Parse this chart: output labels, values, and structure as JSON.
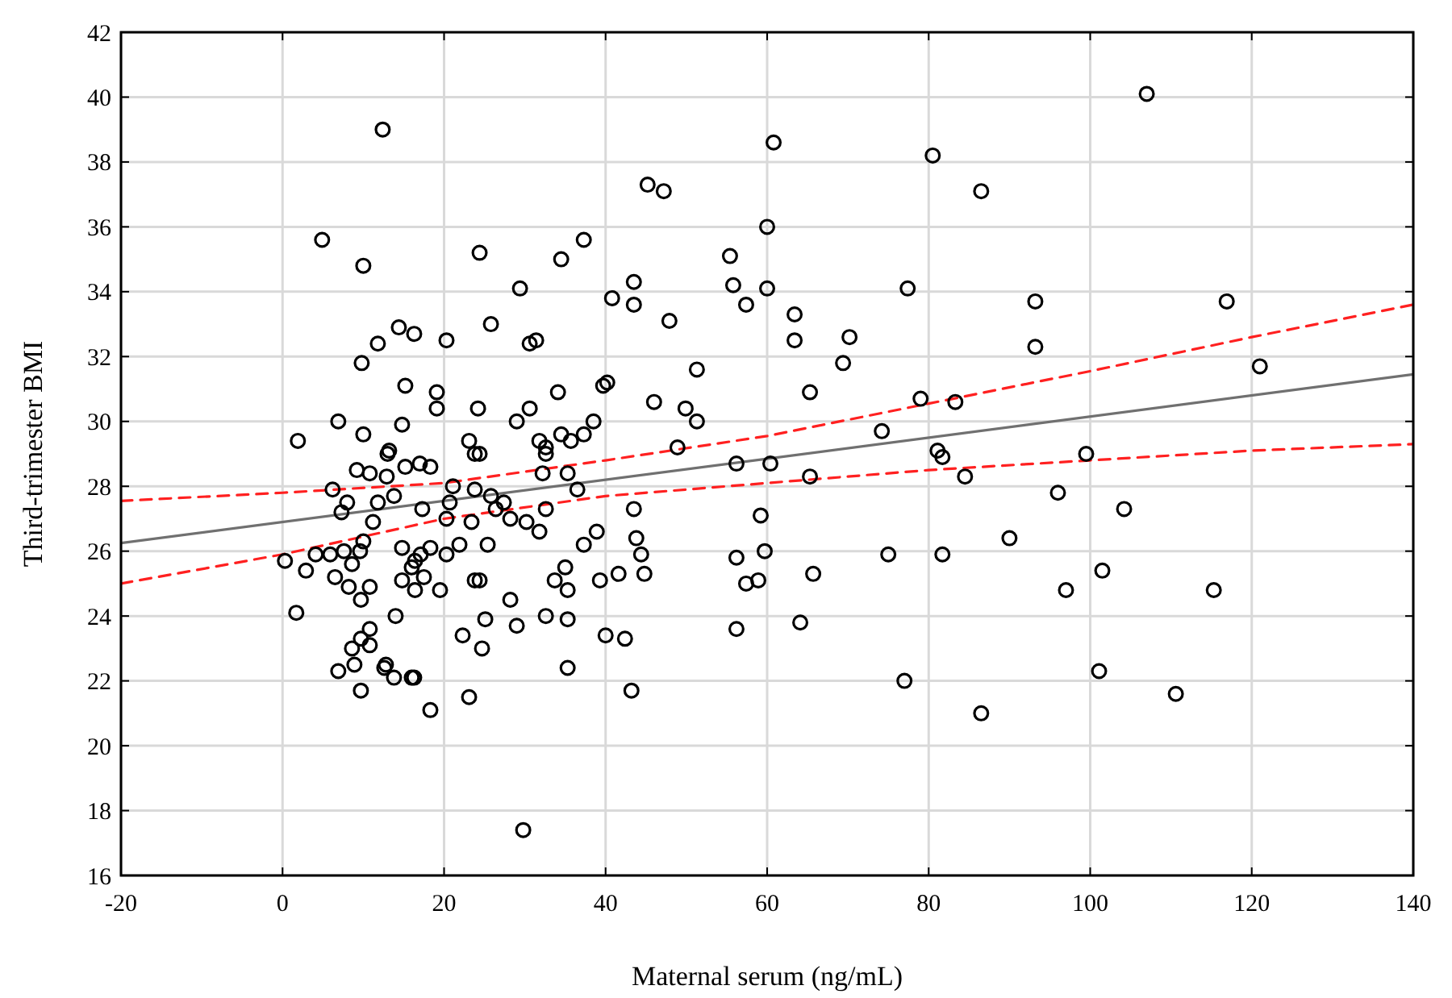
{
  "chart_data": {
    "type": "scatter",
    "xlabel": "Maternal serum (ng/mL)",
    "ylabel": "Third-trimester BMI",
    "xlim": [
      -20,
      140
    ],
    "ylim": [
      16,
      42
    ],
    "xticks": [
      -20,
      0,
      20,
      40,
      60,
      80,
      100,
      120,
      140
    ],
    "yticks": [
      16,
      18,
      20,
      22,
      24,
      26,
      28,
      30,
      32,
      34,
      36,
      38,
      40,
      42
    ],
    "grid": true,
    "marker": "circle",
    "series": [
      {
        "type": "scatter",
        "color": "#000000",
        "x": [
          0.3,
          1.7,
          1.9,
          2.9,
          4.1,
          4.9,
          5.9,
          6.2,
          6.5,
          6.9,
          6.9,
          7.3,
          7.6,
          8.0,
          8.2,
          8.6,
          8.6,
          8.9,
          9.2,
          9.6,
          9.7,
          9.7,
          9.7,
          9.8,
          10.0,
          10.0,
          10.0,
          10.8,
          10.8,
          10.8,
          10.8,
          11.2,
          11.8,
          11.8,
          12.4,
          12.6,
          12.8,
          12.9,
          13.0,
          13.2,
          13.8,
          13.8,
          14.0,
          14.4,
          14.8,
          14.8,
          14.8,
          15.2,
          15.2,
          16.0,
          16.0,
          16.3,
          16.3,
          16.4,
          16.4,
          17.0,
          17.1,
          17.3,
          17.5,
          18.3,
          18.3,
          18.3,
          19.1,
          19.1,
          19.5,
          20.3,
          20.3,
          20.3,
          20.7,
          21.1,
          21.9,
          22.3,
          23.1,
          23.1,
          23.4,
          23.8,
          23.8,
          23.8,
          24.2,
          24.4,
          24.4,
          24.4,
          24.7,
          25.1,
          25.4,
          25.8,
          25.8,
          26.4,
          27.4,
          28.2,
          28.2,
          29.0,
          29.0,
          29.4,
          29.8,
          30.2,
          30.6,
          30.6,
          31.4,
          31.8,
          31.8,
          32.2,
          32.6,
          32.6,
          32.6,
          32.6,
          33.7,
          34.1,
          34.5,
          34.5,
          35.0,
          35.3,
          35.3,
          35.3,
          35.3,
          35.7,
          36.5,
          37.3,
          37.3,
          37.3,
          38.5,
          38.9,
          39.3,
          39.7,
          40.0,
          40.2,
          40.8,
          41.6,
          42.4,
          43.2,
          43.5,
          43.5,
          43.5,
          43.8,
          44.4,
          44.8,
          45.2,
          46.0,
          47.2,
          47.9,
          48.9,
          49.9,
          51.3,
          51.3,
          55.4,
          55.8,
          56.2,
          56.2,
          56.2,
          57.4,
          57.4,
          58.9,
          59.2,
          59.7,
          60.0,
          60.0,
          60.4,
          60.8,
          63.4,
          63.4,
          64.1,
          65.3,
          65.3,
          65.7,
          69.4,
          70.2,
          74.2,
          75.0,
          77.0,
          77.4,
          79.0,
          80.5,
          81.1,
          81.7,
          81.7,
          83.3,
          84.5,
          86.5,
          86.5,
          90.0,
          93.2,
          93.2,
          96.0,
          97.0,
          99.5,
          101.1,
          101.5,
          104.2,
          107.0,
          110.6,
          115.3,
          116.9,
          121.0
        ],
        "values": [
          25.7,
          24.1,
          29.4,
          25.4,
          25.9,
          35.6,
          25.9,
          27.9,
          25.2,
          30.0,
          22.3,
          27.2,
          26.0,
          27.5,
          24.9,
          25.6,
          23.0,
          22.5,
          28.5,
          26.0,
          24.5,
          23.3,
          21.7,
          31.8,
          34.8,
          29.6,
          26.3,
          28.4,
          24.9,
          23.6,
          23.1,
          26.9,
          27.5,
          32.4,
          39.0,
          22.4,
          22.5,
          28.3,
          29.0,
          29.1,
          27.7,
          22.1,
          24.0,
          32.9,
          29.9,
          26.1,
          25.1,
          31.1,
          28.6,
          25.5,
          22.1,
          22.1,
          32.7,
          25.7,
          24.8,
          28.7,
          25.9,
          27.3,
          25.2,
          28.6,
          26.1,
          21.1,
          30.9,
          30.4,
          24.8,
          32.5,
          27.0,
          25.9,
          27.5,
          28.0,
          26.2,
          23.4,
          29.4,
          21.5,
          26.9,
          29.0,
          27.9,
          25.1,
          30.4,
          35.2,
          29.0,
          25.1,
          23.0,
          23.9,
          26.2,
          33.0,
          27.7,
          27.3,
          27.5,
          27.0,
          24.5,
          30.0,
          23.7,
          34.1,
          17.4,
          26.9,
          32.4,
          30.4,
          32.5,
          29.4,
          26.6,
          28.4,
          29.2,
          29.0,
          27.3,
          24.0,
          25.1,
          30.9,
          35.0,
          29.6,
          25.5,
          28.4,
          24.8,
          23.9,
          22.4,
          29.4,
          27.9,
          35.6,
          29.6,
          26.2,
          30.0,
          26.6,
          25.1,
          31.1,
          23.4,
          31.2,
          33.8,
          25.3,
          23.3,
          21.7,
          34.3,
          33.6,
          27.3,
          26.4,
          25.9,
          25.3,
          37.3,
          30.6,
          37.1,
          33.1,
          29.2,
          30.4,
          31.6,
          30.0,
          35.1,
          34.2,
          28.7,
          25.8,
          23.6,
          33.6,
          25.0,
          25.1,
          27.1,
          26.0,
          36.0,
          34.1,
          28.7,
          38.6,
          33.3,
          32.5,
          23.8,
          30.9,
          28.3,
          25.3,
          31.8,
          32.6,
          29.7,
          25.9,
          22.0,
          34.1,
          30.7,
          38.2,
          29.1,
          28.9,
          25.9,
          30.6,
          28.3,
          37.1,
          21.0,
          26.4,
          33.7,
          32.3,
          27.8,
          24.8,
          29.0,
          22.3,
          25.4,
          27.3,
          40.1,
          21.6,
          24.8,
          33.7,
          31.7
        ]
      },
      {
        "type": "line",
        "color": "#707070",
        "line_style": "solid",
        "marker": "none",
        "x": [
          -20,
          140
        ],
        "values": [
          26.25,
          31.45
        ]
      },
      {
        "type": "line",
        "color": "#ff2020",
        "line_style": "dashed",
        "marker": "none",
        "x": [
          -20,
          0,
          20,
          40,
          60,
          80,
          100,
          120,
          140
        ],
        "values": [
          27.55,
          27.8,
          28.1,
          28.8,
          29.55,
          30.55,
          31.55,
          32.6,
          33.6
        ]
      },
      {
        "type": "line",
        "color": "#ff2020",
        "line_style": "dashed",
        "marker": "none",
        "x": [
          -20,
          0,
          20,
          40,
          60,
          80,
          100,
          120,
          140
        ],
        "values": [
          25.0,
          25.9,
          27.0,
          27.7,
          28.1,
          28.5,
          28.8,
          29.1,
          29.3
        ]
      }
    ]
  }
}
